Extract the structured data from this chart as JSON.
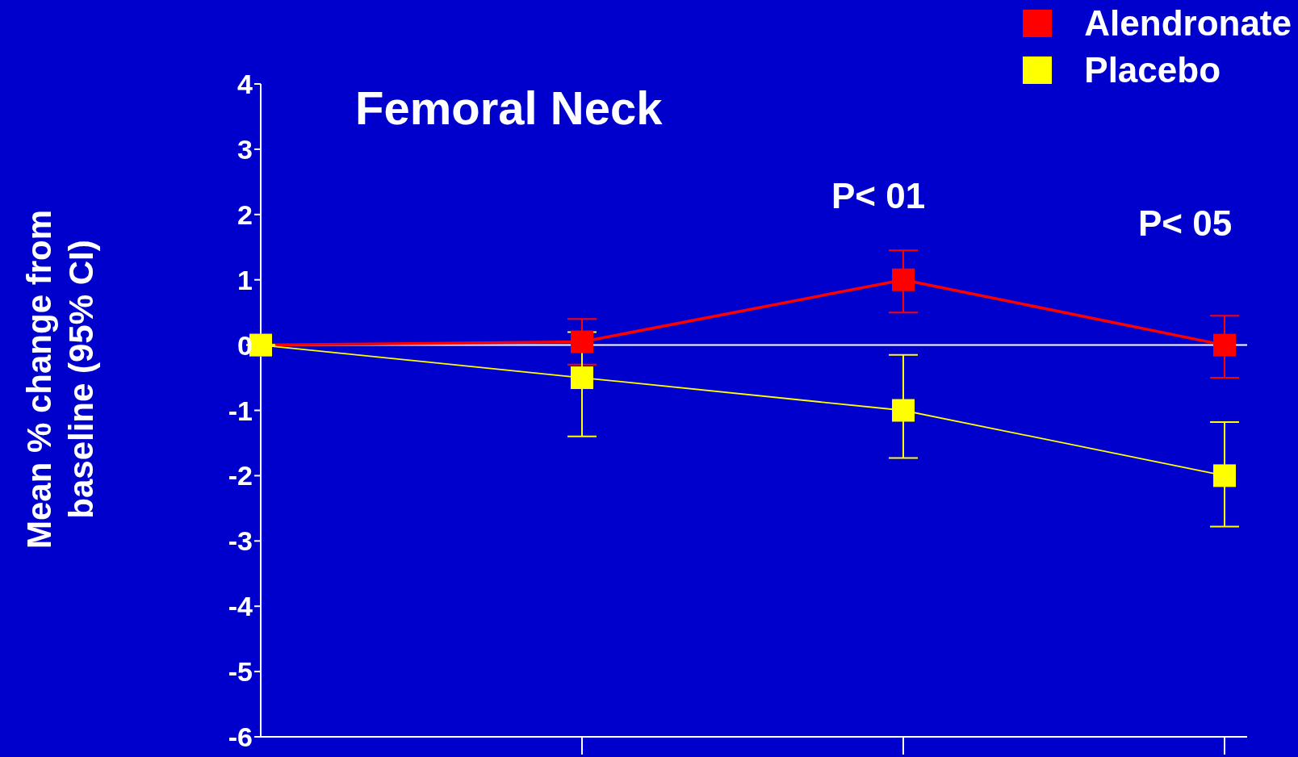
{
  "chart_data": {
    "type": "line",
    "title": "Femoral Neck",
    "ylabel": "Mean % change from baseline (95% CI)",
    "categories": [
      null,
      null,
      null,
      null
    ],
    "series": [
      {
        "name": "Alendronate",
        "color": "#ff0000",
        "values": [
          0,
          0.05,
          1.0,
          0
        ],
        "errors": [
          null,
          [
            -0.3,
            0.4
          ],
          [
            0.5,
            1.45
          ],
          [
            -0.5,
            0.45
          ]
        ]
      },
      {
        "name": "Placebo",
        "color": "#ffff00",
        "values": [
          0,
          -0.5,
          -1.0,
          -2.0
        ],
        "errors": [
          null,
          [
            -1.4,
            0.2
          ],
          [
            -1.73,
            -0.15
          ],
          [
            -2.78,
            -1.18
          ]
        ]
      }
    ],
    "ylim": [
      -6,
      4
    ],
    "yticks": [
      -6,
      -5,
      -4,
      -3,
      -2,
      -1,
      0,
      1,
      2,
      3,
      4
    ],
    "ref_lines": [
      {
        "axis": "y",
        "value": 0,
        "color": "#ffffff"
      }
    ],
    "annotations": [
      "P< 01",
      "P< 05"
    ],
    "marker": "square",
    "legend": "top right",
    "grid": false
  }
}
